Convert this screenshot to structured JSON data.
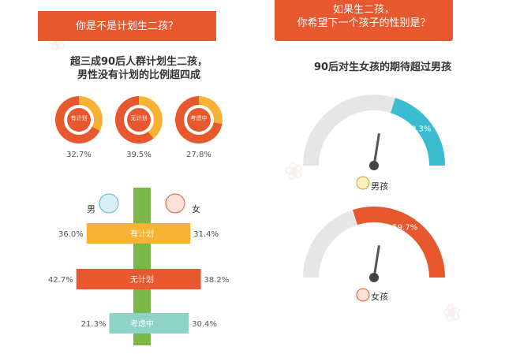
{
  "left": {
    "banner": "你是不是计划生二孩？",
    "headline_lines": [
      "超三成90后人群计划生二孩，",
      "男性没有计划的比例超四成"
    ],
    "gender_labels": {
      "male": "男",
      "female": "女"
    }
  },
  "right": {
    "banner_lines": [
      "如果生二孩，",
      "你希望下一个孩子的性别是？"
    ],
    "subtitle": "90后对生女孩的期待超过男孩",
    "boy_label": "男孩",
    "girl_label": "女孩"
  },
  "chart_data": [
    {
      "type": "pie",
      "categories": [
        "有计划",
        "无计划",
        "考虑中"
      ],
      "values": [
        32.7,
        39.5,
        27.8
      ],
      "value_labels": [
        "32.7%",
        "39.5%",
        "27.8%"
      ],
      "colors": {
        "arc": "#f9b233",
        "ring": "#e8582e"
      }
    },
    {
      "type": "bar",
      "categories": [
        "有计划",
        "无计划",
        "考虑中"
      ],
      "series": [
        {
          "name": "男",
          "values": [
            36.0,
            42.7,
            21.3
          ],
          "labels": [
            "36.0%",
            "42.7%",
            "21.3%"
          ]
        },
        {
          "name": "女",
          "values": [
            31.4,
            38.2,
            30.4
          ],
          "labels": [
            "31.4%",
            "38.2%",
            "30.4%"
          ]
        }
      ],
      "colors": {
        "有计划": "#f9b233",
        "无计划": "#e8582e",
        "考虑中": "#8fd3c8"
      }
    },
    {
      "type": "pie",
      "categories": [
        "男孩",
        "女孩"
      ],
      "values": [
        40.3,
        59.7
      ],
      "value_labels": [
        "40.3%",
        "59.7%"
      ],
      "colors": {
        "男孩": "#3bbcd0",
        "女孩": "#e8582e",
        "track": "#e6e6e6"
      }
    }
  ]
}
